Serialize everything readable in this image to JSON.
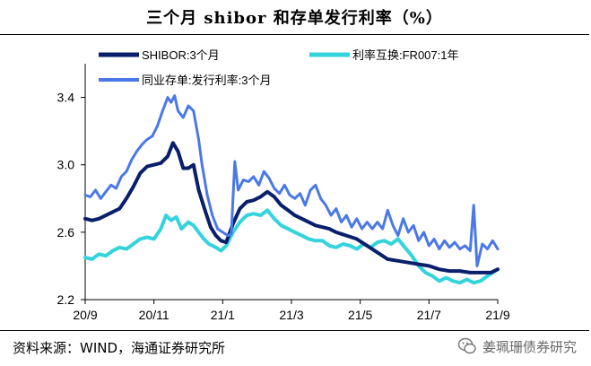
{
  "title": "三个月 shibor 和存单发行利率（%）",
  "source": "资料来源：WIND，海通证券研究所",
  "watermark": "姜珮珊债券研究",
  "chart_data": {
    "type": "line",
    "title": "三个月 shibor 和存单发行利率（%）",
    "xlabel": "",
    "ylabel": "",
    "ylim": [
      2.2,
      3.6
    ],
    "yticks": [
      2.2,
      2.6,
      3.0,
      3.4
    ],
    "ytick_labels": [
      "2.2",
      "2.6",
      "3.0",
      "3.4"
    ],
    "x_range": [
      0,
      12
    ],
    "xticks": [
      0,
      2,
      4,
      6,
      8,
      10,
      12
    ],
    "xtick_labels": [
      "20/9",
      "20/11",
      "21/1",
      "21/3",
      "21/5",
      "21/7",
      "21/9"
    ],
    "legend_position": "top",
    "series": [
      {
        "name": "SHIBOR:3个月",
        "color": "#0a1f6b",
        "width": 4,
        "points": [
          [
            0,
            2.68
          ],
          [
            0.2,
            2.67
          ],
          [
            0.4,
            2.68
          ],
          [
            0.6,
            2.7
          ],
          [
            0.8,
            2.72
          ],
          [
            1.0,
            2.74
          ],
          [
            1.2,
            2.8
          ],
          [
            1.4,
            2.87
          ],
          [
            1.6,
            2.95
          ],
          [
            1.8,
            2.99
          ],
          [
            2.0,
            3.0
          ],
          [
            2.2,
            3.01
          ],
          [
            2.4,
            3.05
          ],
          [
            2.55,
            3.13
          ],
          [
            2.7,
            3.08
          ],
          [
            2.85,
            2.98
          ],
          [
            3.0,
            2.98
          ],
          [
            3.15,
            3.0
          ],
          [
            3.3,
            2.85
          ],
          [
            3.5,
            2.72
          ],
          [
            3.65,
            2.63
          ],
          [
            3.8,
            2.58
          ],
          [
            3.95,
            2.55
          ],
          [
            4.1,
            2.54
          ],
          [
            4.3,
            2.65
          ],
          [
            4.5,
            2.74
          ],
          [
            4.7,
            2.78
          ],
          [
            4.9,
            2.79
          ],
          [
            5.1,
            2.81
          ],
          [
            5.3,
            2.84
          ],
          [
            5.5,
            2.81
          ],
          [
            5.7,
            2.76
          ],
          [
            5.9,
            2.73
          ],
          [
            6.1,
            2.7
          ],
          [
            6.3,
            2.68
          ],
          [
            6.5,
            2.66
          ],
          [
            6.7,
            2.64
          ],
          [
            6.9,
            2.63
          ],
          [
            7.1,
            2.62
          ],
          [
            7.3,
            2.6
          ],
          [
            7.6,
            2.58
          ],
          [
            7.9,
            2.56
          ],
          [
            8.2,
            2.52
          ],
          [
            8.5,
            2.48
          ],
          [
            8.8,
            2.44
          ],
          [
            9.1,
            2.43
          ],
          [
            9.4,
            2.42
          ],
          [
            9.7,
            2.41
          ],
          [
            10.0,
            2.4
          ],
          [
            10.3,
            2.38
          ],
          [
            10.6,
            2.37
          ],
          [
            10.9,
            2.37
          ],
          [
            11.2,
            2.36
          ],
          [
            11.5,
            2.36
          ],
          [
            11.8,
            2.36
          ],
          [
            12.0,
            2.38
          ]
        ]
      },
      {
        "name": "利率互换:FR007:1年",
        "color": "#35d3dc",
        "width": 4,
        "points": [
          [
            0,
            2.45
          ],
          [
            0.2,
            2.44
          ],
          [
            0.4,
            2.47
          ],
          [
            0.6,
            2.46
          ],
          [
            0.8,
            2.49
          ],
          [
            1.0,
            2.51
          ],
          [
            1.2,
            2.5
          ],
          [
            1.4,
            2.53
          ],
          [
            1.6,
            2.56
          ],
          [
            1.8,
            2.57
          ],
          [
            2.0,
            2.56
          ],
          [
            2.2,
            2.62
          ],
          [
            2.35,
            2.7
          ],
          [
            2.5,
            2.67
          ],
          [
            2.65,
            2.69
          ],
          [
            2.8,
            2.62
          ],
          [
            3.0,
            2.66
          ],
          [
            3.15,
            2.64
          ],
          [
            3.3,
            2.6
          ],
          [
            3.45,
            2.56
          ],
          [
            3.6,
            2.53
          ],
          [
            3.8,
            2.51
          ],
          [
            3.95,
            2.49
          ],
          [
            4.1,
            2.52
          ],
          [
            4.3,
            2.6
          ],
          [
            4.5,
            2.66
          ],
          [
            4.7,
            2.7
          ],
          [
            4.9,
            2.71
          ],
          [
            5.1,
            2.7
          ],
          [
            5.3,
            2.73
          ],
          [
            5.5,
            2.68
          ],
          [
            5.7,
            2.64
          ],
          [
            5.9,
            2.62
          ],
          [
            6.1,
            2.6
          ],
          [
            6.3,
            2.58
          ],
          [
            6.5,
            2.56
          ],
          [
            6.7,
            2.55
          ],
          [
            6.9,
            2.55
          ],
          [
            7.1,
            2.52
          ],
          [
            7.3,
            2.51
          ],
          [
            7.5,
            2.53
          ],
          [
            7.7,
            2.52
          ],
          [
            7.9,
            2.5
          ],
          [
            8.1,
            2.53
          ],
          [
            8.3,
            2.51
          ],
          [
            8.5,
            2.54
          ],
          [
            8.7,
            2.55
          ],
          [
            8.9,
            2.53
          ],
          [
            9.1,
            2.56
          ],
          [
            9.3,
            2.51
          ],
          [
            9.5,
            2.46
          ],
          [
            9.7,
            2.4
          ],
          [
            9.9,
            2.36
          ],
          [
            10.1,
            2.34
          ],
          [
            10.3,
            2.31
          ],
          [
            10.5,
            2.33
          ],
          [
            10.7,
            2.31
          ],
          [
            10.9,
            2.3
          ],
          [
            11.1,
            2.32
          ],
          [
            11.3,
            2.3
          ],
          [
            11.5,
            2.31
          ],
          [
            11.7,
            2.34
          ],
          [
            11.85,
            2.36
          ],
          [
            12.0,
            2.38
          ]
        ]
      },
      {
        "name": "同业存单:发行利率:3个月",
        "color": "#4a78e8",
        "width": 3,
        "points": [
          [
            0,
            2.82
          ],
          [
            0.15,
            2.81
          ],
          [
            0.3,
            2.85
          ],
          [
            0.45,
            2.8
          ],
          [
            0.6,
            2.84
          ],
          [
            0.75,
            2.88
          ],
          [
            0.9,
            2.86
          ],
          [
            1.05,
            2.93
          ],
          [
            1.2,
            2.96
          ],
          [
            1.35,
            3.03
          ],
          [
            1.5,
            3.08
          ],
          [
            1.65,
            3.12
          ],
          [
            1.8,
            3.15
          ],
          [
            1.95,
            3.17
          ],
          [
            2.1,
            3.23
          ],
          [
            2.25,
            3.32
          ],
          [
            2.4,
            3.4
          ],
          [
            2.5,
            3.37
          ],
          [
            2.6,
            3.41
          ],
          [
            2.7,
            3.32
          ],
          [
            2.85,
            3.28
          ],
          [
            3.0,
            3.35
          ],
          [
            3.15,
            3.32
          ],
          [
            3.3,
            3.15
          ],
          [
            3.4,
            3.0
          ],
          [
            3.55,
            2.82
          ],
          [
            3.7,
            2.7
          ],
          [
            3.85,
            2.62
          ],
          [
            4.0,
            2.6
          ],
          [
            4.15,
            2.58
          ],
          [
            4.25,
            2.59
          ],
          [
            4.35,
            3.02
          ],
          [
            4.45,
            2.85
          ],
          [
            4.6,
            2.91
          ],
          [
            4.75,
            2.9
          ],
          [
            4.9,
            2.93
          ],
          [
            5.05,
            2.88
          ],
          [
            5.2,
            2.96
          ],
          [
            5.35,
            2.92
          ],
          [
            5.5,
            2.86
          ],
          [
            5.65,
            2.83
          ],
          [
            5.8,
            2.88
          ],
          [
            5.95,
            2.82
          ],
          [
            6.1,
            2.8
          ],
          [
            6.25,
            2.83
          ],
          [
            6.4,
            2.76
          ],
          [
            6.55,
            2.85
          ],
          [
            6.7,
            2.88
          ],
          [
            6.85,
            2.8
          ],
          [
            7.0,
            2.76
          ],
          [
            7.15,
            2.7
          ],
          [
            7.3,
            2.74
          ],
          [
            7.45,
            2.66
          ],
          [
            7.6,
            2.7
          ],
          [
            7.75,
            2.63
          ],
          [
            7.9,
            2.68
          ],
          [
            8.05,
            2.62
          ],
          [
            8.2,
            2.66
          ],
          [
            8.35,
            2.62
          ],
          [
            8.5,
            2.66
          ],
          [
            8.65,
            2.62
          ],
          [
            8.8,
            2.73
          ],
          [
            8.95,
            2.64
          ],
          [
            9.1,
            2.58
          ],
          [
            9.25,
            2.68
          ],
          [
            9.4,
            2.6
          ],
          [
            9.55,
            2.64
          ],
          [
            9.7,
            2.55
          ],
          [
            9.85,
            2.6
          ],
          [
            10.0,
            2.52
          ],
          [
            10.15,
            2.56
          ],
          [
            10.3,
            2.5
          ],
          [
            10.45,
            2.55
          ],
          [
            10.6,
            2.51
          ],
          [
            10.75,
            2.54
          ],
          [
            10.9,
            2.5
          ],
          [
            11.05,
            2.52
          ],
          [
            11.2,
            2.49
          ],
          [
            11.3,
            2.76
          ],
          [
            11.4,
            2.4
          ],
          [
            11.55,
            2.53
          ],
          [
            11.7,
            2.5
          ],
          [
            11.85,
            2.55
          ],
          [
            12.0,
            2.5
          ]
        ]
      }
    ]
  }
}
